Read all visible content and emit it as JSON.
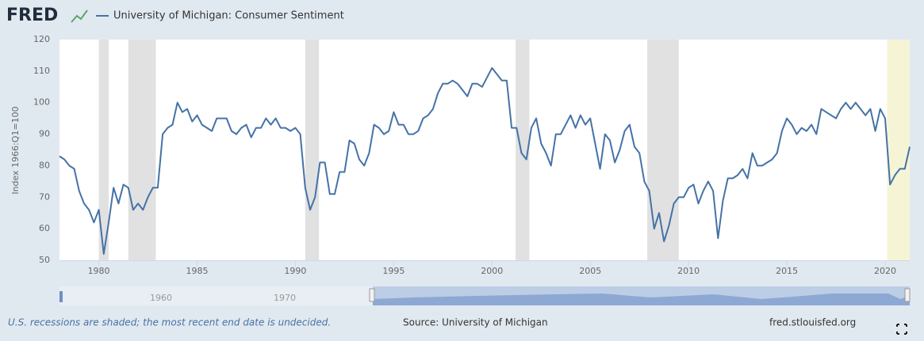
{
  "logo": "FRED",
  "chart_data": {
    "type": "line",
    "series": [
      {
        "name": "University of Michigan: Consumer Sentiment",
        "color": "#4572a7",
        "values": [
          83,
          82,
          80,
          79,
          72,
          68,
          66,
          62,
          66,
          52,
          62,
          73,
          68,
          74,
          73,
          66,
          68,
          66,
          70,
          73,
          73,
          90,
          92,
          93,
          100,
          97,
          98,
          94,
          96,
          93,
          92,
          91,
          95,
          95,
          95,
          91,
          90,
          92,
          93,
          89,
          92,
          92,
          95,
          93,
          95,
          92,
          92,
          91,
          92,
          90,
          73,
          66,
          70,
          81,
          81,
          71,
          71,
          78,
          78,
          88,
          87,
          82,
          80,
          84,
          93,
          92,
          90,
          91,
          97,
          93,
          93,
          90,
          90,
          91,
          95,
          96,
          98,
          103,
          106,
          106,
          107,
          106,
          104,
          102,
          106,
          106,
          105,
          108,
          111,
          109,
          107,
          107,
          92,
          92,
          84,
          82,
          92,
          95,
          87,
          84,
          80,
          90,
          90,
          93,
          96,
          92,
          96,
          93,
          95,
          87,
          79,
          90,
          88,
          81,
          85,
          91,
          93,
          86,
          84,
          75,
          72,
          60,
          65,
          56,
          61,
          68,
          70,
          70,
          73,
          74,
          68,
          72,
          75,
          72,
          57,
          69,
          76,
          76,
          77,
          79,
          76,
          84,
          80,
          80,
          81,
          82,
          84,
          91,
          95,
          93,
          90,
          92,
          91,
          93,
          90,
          98,
          97,
          96,
          95,
          98,
          100,
          98,
          100,
          98,
          96,
          98,
          91,
          98,
          95,
          74,
          77,
          79,
          79,
          86
        ]
      }
    ],
    "x": [
      1978,
      1978.25,
      1978.5,
      1978.75,
      1979,
      1979.25,
      1979.5,
      1979.75,
      1980,
      1980.25,
      1980.5,
      1980.75,
      1981,
      1981.25,
      1981.5,
      1981.75,
      1982,
      1982.25,
      1982.5,
      1982.75,
      1983,
      1983.25,
      1983.5,
      1983.75,
      1984,
      1984.25,
      1984.5,
      1984.75,
      1985,
      1985.25,
      1985.5,
      1985.75,
      1986,
      1986.25,
      1986.5,
      1986.75,
      1987,
      1987.25,
      1987.5,
      1987.75,
      1988,
      1988.25,
      1988.5,
      1988.75,
      1989,
      1989.25,
      1989.5,
      1989.75,
      1990,
      1990.25,
      1990.5,
      1990.75,
      1991,
      1991.25,
      1991.5,
      1991.75,
      1992,
      1992.25,
      1992.5,
      1992.75,
      1993,
      1993.25,
      1993.5,
      1993.75,
      1994,
      1994.25,
      1994.5,
      1994.75,
      1995,
      1995.25,
      1995.5,
      1995.75,
      1996,
      1996.25,
      1996.5,
      1996.75,
      1997,
      1997.25,
      1997.5,
      1997.75,
      1998,
      1998.25,
      1998.5,
      1998.75,
      1999,
      1999.25,
      1999.5,
      1999.75,
      2000,
      2000.25,
      2000.5,
      2000.75,
      2001,
      2001.25,
      2001.5,
      2001.75,
      2002,
      2002.25,
      2002.5,
      2002.75,
      2003,
      2003.25,
      2003.5,
      2003.75,
      2004,
      2004.25,
      2004.5,
      2004.75,
      2005,
      2005.25,
      2005.5,
      2005.75,
      2006,
      2006.25,
      2006.5,
      2006.75,
      2007,
      2007.25,
      2007.5,
      2007.75,
      2008,
      2008.25,
      2008.5,
      2008.75,
      2009,
      2009.25,
      2009.5,
      2009.75,
      2010,
      2010.25,
      2010.5,
      2010.75,
      2011,
      2011.25,
      2011.5,
      2011.75,
      2012,
      2012.25,
      2012.5,
      2012.75,
      2013,
      2013.25,
      2013.5,
      2013.75,
      2014,
      2014.25,
      2014.5,
      2014.75,
      2015,
      2015.25,
      2015.5,
      2015.75,
      2016,
      2016.25,
      2016.5,
      2016.75,
      2017,
      2017.25,
      2017.5,
      2017.75,
      2018,
      2018.25,
      2018.5,
      2018.75,
      2019,
      2019.25,
      2019.5,
      2019.75,
      2020,
      2020.25,
      2020.5,
      2020.75,
      2021,
      2021.25
    ],
    "xlim": [
      1978,
      2021.25
    ],
    "xticks": [
      1980,
      1985,
      1990,
      1995,
      2000,
      2005,
      2010,
      2015,
      2020
    ],
    "ylim": [
      50,
      120
    ],
    "yticks": [
      50,
      60,
      70,
      80,
      90,
      100,
      110,
      120
    ],
    "ylabel": "Index 1966:Q1=100",
    "grid": false,
    "recessions": [
      {
        "start": 1980,
        "end": 1980.5,
        "color": "#e1e1e1"
      },
      {
        "start": 1981.5,
        "end": 1982.9,
        "color": "#e1e1e1"
      },
      {
        "start": 1990.5,
        "end": 1991.2,
        "color": "#e1e1e1"
      },
      {
        "start": 2001.2,
        "end": 2001.9,
        "color": "#e1e1e1"
      },
      {
        "start": 2007.9,
        "end": 2009.5,
        "color": "#e1e1e1"
      },
      {
        "start": 2020.1,
        "end": 2021.25,
        "color": "#f5f5d6"
      }
    ]
  },
  "navigator": {
    "ticks": [
      "1960",
      "1970"
    ]
  },
  "footer": {
    "note": "U.S. recessions are shaded; the most recent end date is undecided.",
    "source": "Source: University of Michigan",
    "site": "fred.stlouisfed.org"
  }
}
